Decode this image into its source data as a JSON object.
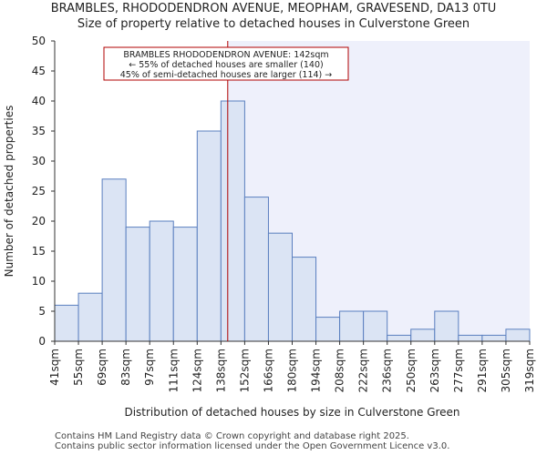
{
  "title": "BRAMBLES, RHODODENDRON AVENUE, MEOPHAM, GRAVESEND, DA13 0TU",
  "subtitle": "Size of property relative to detached houses in Culverstone Green",
  "footer": {
    "line1": "Contains HM Land Registry data © Crown copyright and database right 2025.",
    "line2": "Contains public sector information licensed under the Open Government Licence v3.0."
  },
  "annotation": {
    "line1": "BRAMBLES RHODODENDRON AVENUE: 142sqm",
    "line2": "← 55% of detached houses are smaller (140)",
    "line3": "45% of semi-detached houses are larger (114) →"
  },
  "colors": {
    "bar_fill": "#dbe4f4",
    "bar_stroke": "#5a7fbf",
    "highlight_bg": "#eef0fb",
    "marker_line": "#b00000",
    "annotation_border": "#b00000"
  },
  "chart_data": {
    "type": "bar",
    "title": "BRAMBLES, RHODODENDRON AVENUE, MEOPHAM, GRAVESEND, DA13 0TU",
    "subtitle": "Size of property relative to detached houses in Culverstone Green",
    "xlabel": "Distribution of detached houses by size in Culverstone Green",
    "ylabel": "Number of detached properties",
    "ylim": [
      0,
      50
    ],
    "yticks": [
      0,
      5,
      10,
      15,
      20,
      25,
      30,
      35,
      40,
      45,
      50
    ],
    "bin_edges": [
      41,
      55,
      69,
      83,
      97,
      111,
      124,
      138,
      152,
      166,
      180,
      194,
      208,
      222,
      236,
      250,
      263,
      277,
      291,
      305,
      319
    ],
    "x_tick_labels": [
      "41sqm",
      "55sqm",
      "69sqm",
      "83sqm",
      "97sqm",
      "111sqm",
      "124sqm",
      "138sqm",
      "152sqm",
      "166sqm",
      "180sqm",
      "194sqm",
      "208sqm",
      "222sqm",
      "236sqm",
      "250sqm",
      "263sqm",
      "277sqm",
      "291sqm",
      "305sqm",
      "319sqm"
    ],
    "values": [
      6,
      8,
      27,
      19,
      20,
      19,
      35,
      40,
      24,
      18,
      14,
      4,
      5,
      5,
      1,
      2,
      5,
      1,
      1,
      2
    ],
    "property_size": 142,
    "highlight_from": 142
  }
}
